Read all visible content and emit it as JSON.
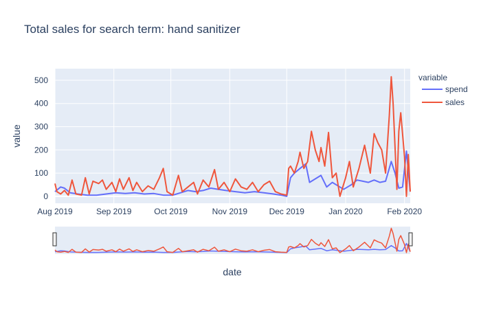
{
  "chart_data": {
    "type": "line",
    "title": "Total sales for search term: hand sanitizer",
    "xlabel": "date",
    "ylabel": "value",
    "xlim": [
      "2019-08-01",
      "2020-02-04"
    ],
    "ylim": [
      -30,
      550
    ],
    "x_ticks": [
      {
        "date": "2019-08-01",
        "label": "Aug 2019"
      },
      {
        "date": "2019-09-01",
        "label": "Sep 2019"
      },
      {
        "date": "2019-10-01",
        "label": "Oct 2019"
      },
      {
        "date": "2019-11-01",
        "label": "Nov 2019"
      },
      {
        "date": "2019-12-01",
        "label": "Dec 2019"
      },
      {
        "date": "2020-01-01",
        "label": "Jan 2020"
      },
      {
        "date": "2020-02-01",
        "label": "Feb 2020"
      }
    ],
    "y_ticks": [
      0,
      100,
      200,
      300,
      400,
      500
    ],
    "grid": true,
    "legend_title": "variable",
    "legend_position": "top-right",
    "range_slider": true,
    "series": [
      {
        "name": "spend",
        "color": "#636efa",
        "points": [
          [
            "2019-08-01",
            20
          ],
          [
            "2019-08-04",
            40
          ],
          [
            "2019-08-06",
            35
          ],
          [
            "2019-08-09",
            15
          ],
          [
            "2019-08-13",
            10
          ],
          [
            "2019-08-18",
            5
          ],
          [
            "2019-08-23",
            5
          ],
          [
            "2019-08-28",
            10
          ],
          [
            "2019-09-02",
            15
          ],
          [
            "2019-09-07",
            12
          ],
          [
            "2019-09-12",
            15
          ],
          [
            "2019-09-17",
            10
          ],
          [
            "2019-09-22",
            12
          ],
          [
            "2019-09-27",
            5
          ],
          [
            "2019-10-02",
            5
          ],
          [
            "2019-10-06",
            15
          ],
          [
            "2019-10-10",
            25
          ],
          [
            "2019-10-14",
            20
          ],
          [
            "2019-10-18",
            25
          ],
          [
            "2019-10-22",
            35
          ],
          [
            "2019-10-26",
            30
          ],
          [
            "2019-10-30",
            25
          ],
          [
            "2019-11-04",
            20
          ],
          [
            "2019-11-09",
            15
          ],
          [
            "2019-11-14",
            20
          ],
          [
            "2019-11-19",
            15
          ],
          [
            "2019-11-24",
            10
          ],
          [
            "2019-11-28",
            5
          ],
          [
            "2019-12-01",
            0
          ],
          [
            "2019-12-03",
            80
          ],
          [
            "2019-12-05",
            100
          ],
          [
            "2019-12-08",
            120
          ],
          [
            "2019-12-11",
            140
          ],
          [
            "2019-12-13",
            60
          ],
          [
            "2019-12-16",
            75
          ],
          [
            "2019-12-19",
            90
          ],
          [
            "2019-12-22",
            40
          ],
          [
            "2019-12-25",
            60
          ],
          [
            "2019-12-28",
            45
          ],
          [
            "2019-12-31",
            30
          ],
          [
            "2020-01-04",
            50
          ],
          [
            "2020-01-07",
            70
          ],
          [
            "2020-01-10",
            65
          ],
          [
            "2020-01-13",
            60
          ],
          [
            "2020-01-16",
            70
          ],
          [
            "2020-01-19",
            60
          ],
          [
            "2020-01-22",
            65
          ],
          [
            "2020-01-25",
            150
          ],
          [
            "2020-01-27",
            100
          ],
          [
            "2020-01-29",
            35
          ],
          [
            "2020-01-31",
            40
          ],
          [
            "2020-02-02",
            195
          ],
          [
            "2020-02-04",
            20
          ]
        ]
      },
      {
        "name": "sales",
        "color": "#ef553b",
        "points": [
          [
            "2019-08-01",
            55
          ],
          [
            "2019-08-02",
            20
          ],
          [
            "2019-08-04",
            10
          ],
          [
            "2019-08-06",
            25
          ],
          [
            "2019-08-08",
            5
          ],
          [
            "2019-08-10",
            70
          ],
          [
            "2019-08-12",
            10
          ],
          [
            "2019-08-15",
            5
          ],
          [
            "2019-08-17",
            80
          ],
          [
            "2019-08-19",
            10
          ],
          [
            "2019-08-21",
            65
          ],
          [
            "2019-08-24",
            55
          ],
          [
            "2019-08-26",
            70
          ],
          [
            "2019-08-28",
            30
          ],
          [
            "2019-08-31",
            60
          ],
          [
            "2019-09-02",
            20
          ],
          [
            "2019-09-04",
            75
          ],
          [
            "2019-09-06",
            30
          ],
          [
            "2019-09-09",
            80
          ],
          [
            "2019-09-11",
            25
          ],
          [
            "2019-09-13",
            60
          ],
          [
            "2019-09-16",
            20
          ],
          [
            "2019-09-19",
            45
          ],
          [
            "2019-09-22",
            30
          ],
          [
            "2019-09-25",
            80
          ],
          [
            "2019-09-27",
            120
          ],
          [
            "2019-09-29",
            20
          ],
          [
            "2019-10-02",
            5
          ],
          [
            "2019-10-05",
            90
          ],
          [
            "2019-10-07",
            20
          ],
          [
            "2019-10-10",
            40
          ],
          [
            "2019-10-13",
            60
          ],
          [
            "2019-10-15",
            10
          ],
          [
            "2019-10-18",
            70
          ],
          [
            "2019-10-21",
            40
          ],
          [
            "2019-10-24",
            115
          ],
          [
            "2019-10-26",
            30
          ],
          [
            "2019-10-29",
            60
          ],
          [
            "2019-11-01",
            20
          ],
          [
            "2019-11-04",
            75
          ],
          [
            "2019-11-07",
            40
          ],
          [
            "2019-11-10",
            30
          ],
          [
            "2019-11-13",
            60
          ],
          [
            "2019-11-16",
            20
          ],
          [
            "2019-11-19",
            50
          ],
          [
            "2019-11-22",
            65
          ],
          [
            "2019-11-25",
            20
          ],
          [
            "2019-11-28",
            10
          ],
          [
            "2019-12-01",
            5
          ],
          [
            "2019-12-02",
            120
          ],
          [
            "2019-12-03",
            130
          ],
          [
            "2019-12-05",
            100
          ],
          [
            "2019-12-07",
            150
          ],
          [
            "2019-12-08",
            190
          ],
          [
            "2019-12-10",
            120
          ],
          [
            "2019-12-12",
            150
          ],
          [
            "2019-12-14",
            280
          ],
          [
            "2019-12-16",
            200
          ],
          [
            "2019-12-18",
            150
          ],
          [
            "2019-12-19",
            210
          ],
          [
            "2019-12-21",
            130
          ],
          [
            "2019-12-23",
            275
          ],
          [
            "2019-12-25",
            80
          ],
          [
            "2019-12-27",
            100
          ],
          [
            "2019-12-29",
            0
          ],
          [
            "2020-01-01",
            80
          ],
          [
            "2020-01-03",
            150
          ],
          [
            "2020-01-05",
            40
          ],
          [
            "2020-01-08",
            120
          ],
          [
            "2020-01-11",
            220
          ],
          [
            "2020-01-14",
            100
          ],
          [
            "2020-01-16",
            270
          ],
          [
            "2020-01-18",
            230
          ],
          [
            "2020-01-20",
            200
          ],
          [
            "2020-01-22",
            100
          ],
          [
            "2020-01-24",
            350
          ],
          [
            "2020-01-25",
            515
          ],
          [
            "2020-01-26",
            400
          ],
          [
            "2020-01-28",
            30
          ],
          [
            "2020-01-29",
            280
          ],
          [
            "2020-01-30",
            360
          ],
          [
            "2020-02-01",
            170
          ],
          [
            "2020-02-02",
            0
          ],
          [
            "2020-02-03",
            180
          ],
          [
            "2020-02-04",
            20
          ]
        ]
      }
    ]
  }
}
